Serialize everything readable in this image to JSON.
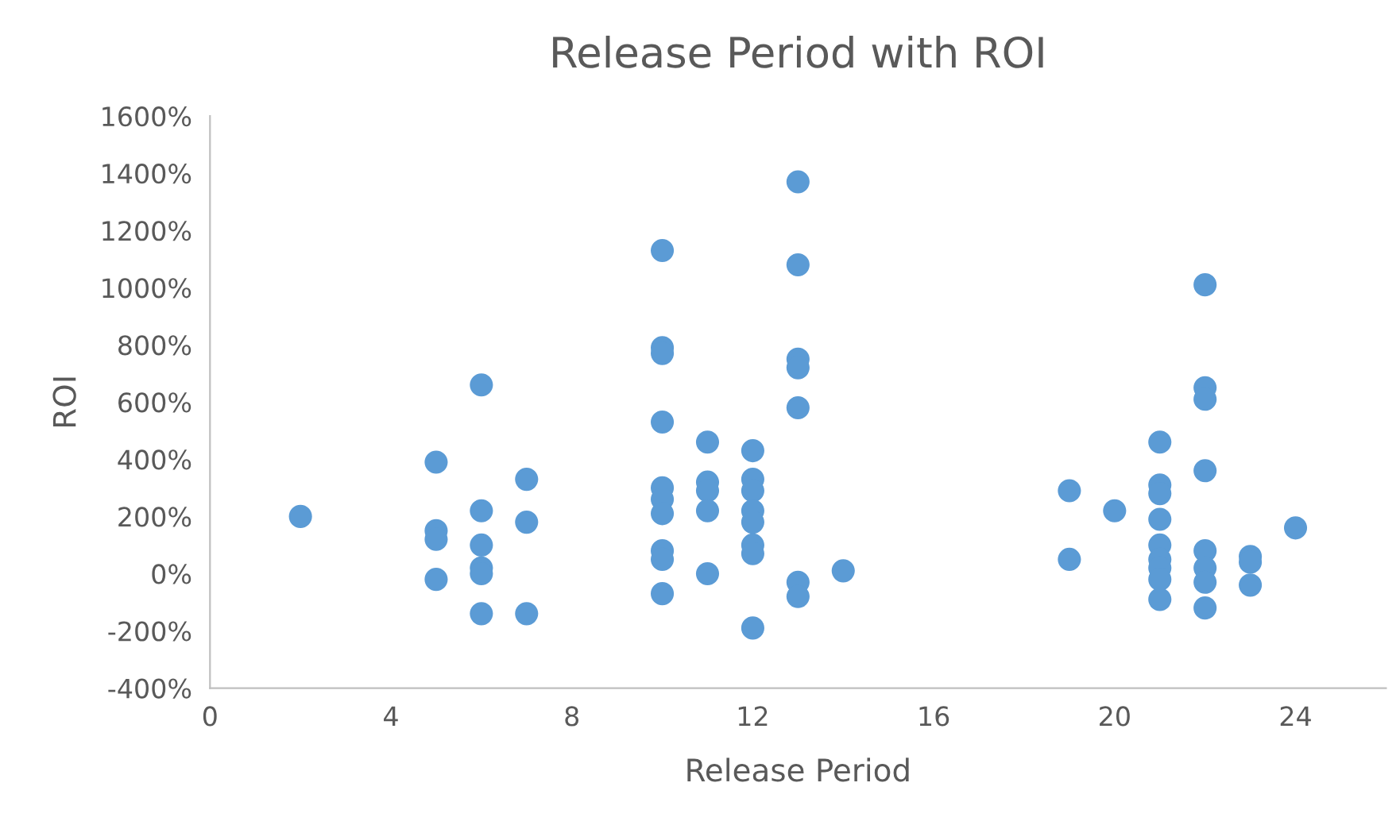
{
  "chart_data": {
    "type": "scatter",
    "title": "Release Period with ROI",
    "xlabel": "Release Period",
    "ylabel": "ROI",
    "xlim": [
      0,
      26
    ],
    "xticks": [
      0,
      4,
      8,
      12,
      16,
      20,
      24
    ],
    "ylim": [
      -400,
      1600
    ],
    "yticks": [
      {
        "value": -400,
        "label": "-400%"
      },
      {
        "value": -200,
        "label": "-200%"
      },
      {
        "value": 0,
        "label": "0%"
      },
      {
        "value": 200,
        "label": "200%"
      },
      {
        "value": 400,
        "label": "400%"
      },
      {
        "value": 600,
        "label": "600%"
      },
      {
        "value": 800,
        "label": "800%"
      },
      {
        "value": 1000,
        "label": "1000%"
      },
      {
        "value": 1200,
        "label": "1200%"
      },
      {
        "value": 1400,
        "label": "1400%"
      },
      {
        "value": 1600,
        "label": "1600%"
      }
    ],
    "grid": false,
    "marker": "circle",
    "series": [
      {
        "color": "#5b9bd5",
        "x": [
          2,
          5,
          5,
          5,
          5,
          6,
          6,
          6,
          6,
          6,
          6,
          7,
          7,
          7,
          10,
          10,
          10,
          10,
          10,
          10,
          10,
          10,
          10,
          10,
          11,
          11,
          11,
          11,
          11,
          12,
          12,
          12,
          12,
          12,
          12,
          12,
          12,
          13,
          13,
          13,
          13,
          13,
          13,
          13,
          14,
          19,
          19,
          20,
          21,
          21,
          21,
          21,
          21,
          21,
          21,
          21,
          21,
          22,
          22,
          22,
          22,
          22,
          22,
          22,
          22,
          23,
          23,
          23,
          24
        ],
        "values": [
          200,
          390,
          150,
          120,
          -20,
          660,
          220,
          100,
          20,
          0,
          -140,
          330,
          180,
          -140,
          1130,
          790,
          770,
          530,
          300,
          260,
          210,
          80,
          50,
          -70,
          460,
          320,
          290,
          220,
          0,
          430,
          330,
          290,
          220,
          180,
          100,
          70,
          -190,
          1370,
          1080,
          750,
          720,
          580,
          -30,
          -80,
          10,
          290,
          50,
          220,
          460,
          310,
          280,
          190,
          100,
          50,
          20,
          -20,
          -90,
          1010,
          650,
          610,
          360,
          80,
          20,
          -30,
          -120,
          60,
          40,
          -40,
          160
        ]
      }
    ]
  }
}
